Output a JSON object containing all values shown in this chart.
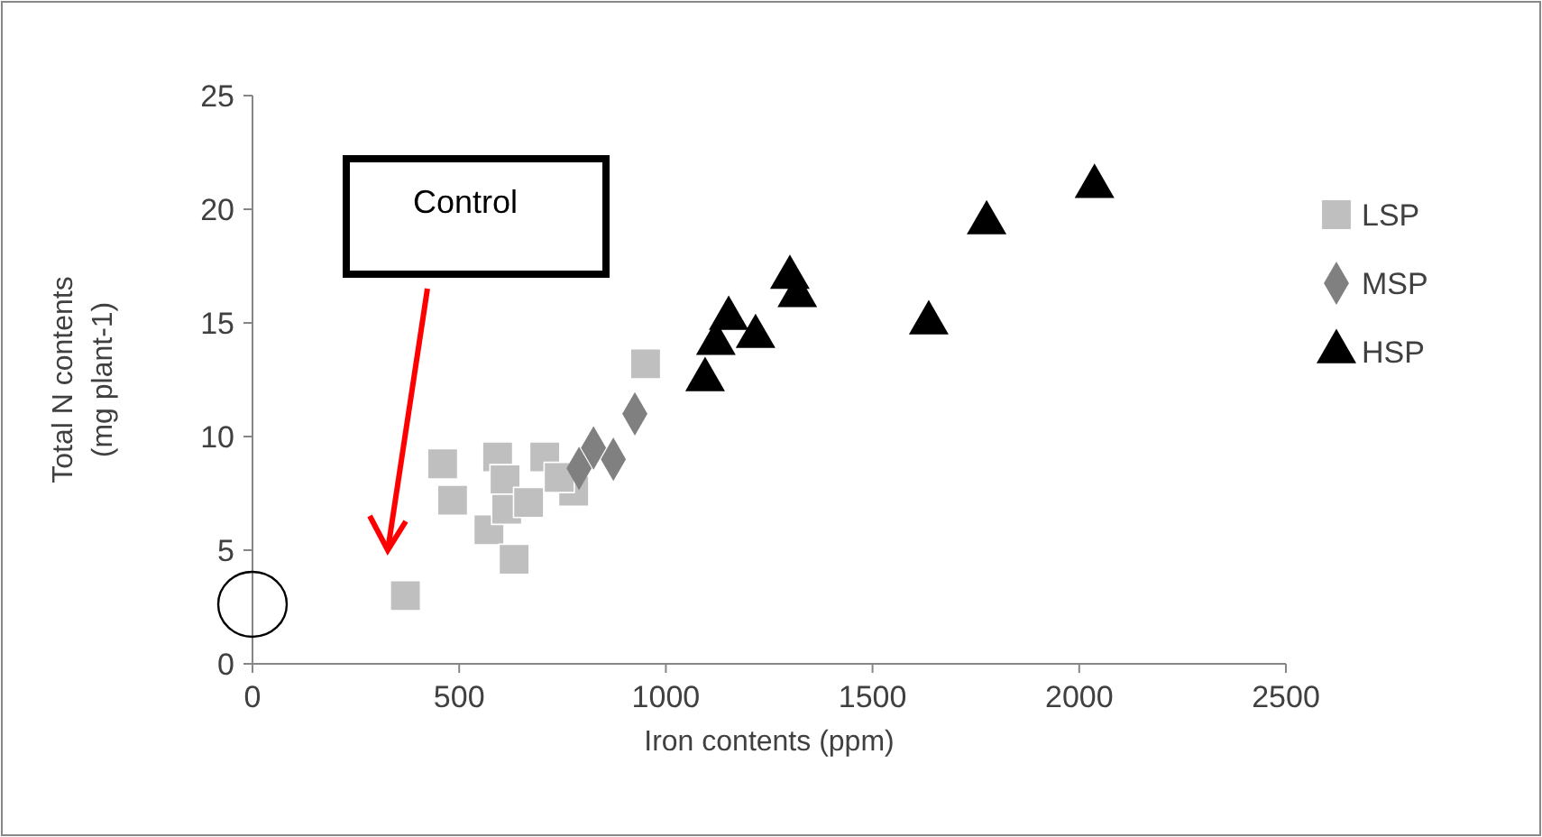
{
  "chart_data": {
    "type": "scatter",
    "xlabel": "Iron contents (ppm)",
    "ylabel": "Total N contents\n(mg plant-1)",
    "xlim": [
      0,
      2500
    ],
    "xticks": [
      0,
      500,
      1000,
      1500,
      2000,
      2500
    ],
    "ylim": [
      0,
      25
    ],
    "yticks": [
      0,
      5,
      10,
      15,
      20,
      25
    ],
    "grid": false,
    "legend": "right",
    "series": [
      {
        "name": "LSP",
        "color": "#bfbfbf",
        "marker": "square",
        "x": [
          370,
          460,
          484,
          593,
          707,
          951,
          611,
          572,
          615,
          668,
          633,
          777,
          742
        ],
        "values": [
          3,
          8.8,
          7.2,
          9.1,
          9.1,
          13.2,
          8.1,
          5.9,
          6.8,
          7.1,
          4.6,
          7.6,
          8.2
        ]
      },
      {
        "name": "MSP",
        "color": "#808080",
        "marker": "diamond",
        "x": [
          790,
          825,
          873,
          925
        ],
        "values": [
          8.6,
          9.5,
          9.0,
          11.0
        ]
      },
      {
        "name": "HSP",
        "color": "#000000",
        "marker": "triangle",
        "x": [
          1095,
          1121,
          1152,
          1217,
          1300,
          1318,
          1636,
          1776,
          2037
        ],
        "values": [
          12.5,
          14.1,
          15.2,
          14.4,
          17.0,
          16.2,
          15.0,
          19.4,
          21.0
        ]
      }
    ],
    "annotations": [
      "Control"
    ]
  }
}
